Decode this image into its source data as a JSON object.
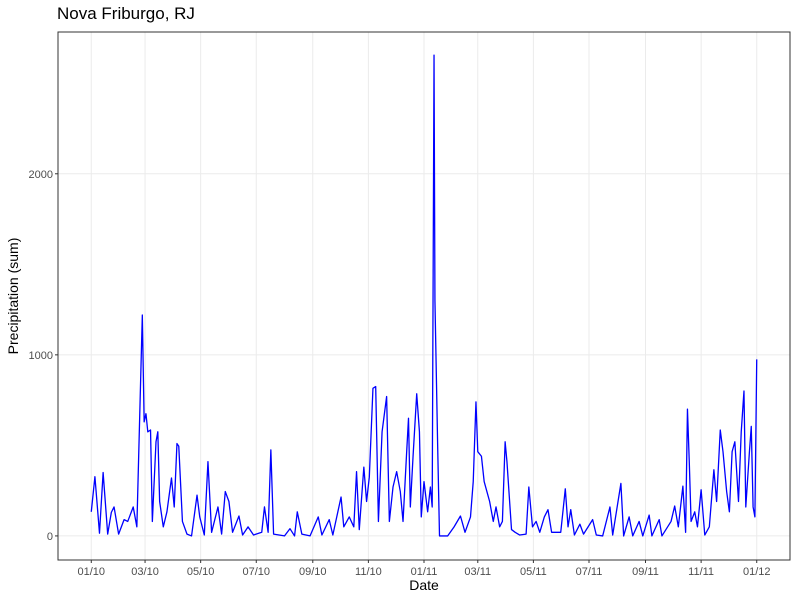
{
  "chart_data": {
    "type": "line",
    "title": "Nova Friburgo, RJ",
    "x_label": "Date",
    "y_label": "Precipitation (sum)",
    "x": [
      0,
      4,
      9,
      13,
      18,
      22,
      25,
      30,
      36,
      40,
      46,
      50,
      56,
      58,
      60,
      62,
      65,
      67,
      71,
      73,
      75,
      79,
      83,
      88,
      91,
      94,
      96,
      100,
      105,
      110,
      116,
      119,
      124,
      128,
      132,
      139,
      143,
      147,
      151,
      155,
      162,
      166,
      172,
      178,
      187,
      190,
      194,
      197,
      200,
      212,
      218,
      223,
      226,
      231,
      240,
      249,
      253,
      261,
      265,
      274,
      277,
      283,
      288,
      291,
      294,
      299,
      302,
      305,
      309,
      312,
      315,
      319,
      324,
      327,
      331,
      335,
      339,
      342,
      346,
      348,
      350,
      353,
      357,
      360,
      362,
      365,
      369,
      372,
      374,
      376,
      377,
      380,
      382,
      391,
      398,
      405,
      410,
      416,
      419,
      422,
      424,
      428,
      431,
      434,
      437,
      441,
      444,
      448,
      451,
      454,
      456,
      461,
      465,
      470,
      477,
      480,
      484,
      488,
      492,
      497,
      501,
      505,
      511,
      515,
      520,
      523,
      526,
      530,
      536,
      540,
      550,
      554,
      561,
      569,
      572,
      581,
      584,
      590,
      594,
      601,
      605,
      612,
      615,
      623,
      626,
      636,
      640,
      644,
      649,
      652,
      654,
      656,
      658,
      662,
      665,
      669,
      673,
      678,
      683,
      686,
      690,
      693,
      697,
      700,
      703,
      706,
      710,
      713,
      716,
      718,
      722,
      724,
      726,
      728,
      730
    ],
    "series": [
      {
        "name": "Precipitation",
        "color": "#0000ff",
        "values": [
          133,
          327,
          15,
          350,
          10,
          130,
          160,
          10,
          90,
          80,
          160,
          50,
          1220,
          630,
          675,
          575,
          585,
          80,
          520,
          575,
          190,
          50,
          133,
          320,
          160,
          510,
          495,
          80,
          10,
          0,
          225,
          105,
          5,
          410,
          20,
          160,
          10,
          245,
          190,
          20,
          110,
          5,
          50,
          5,
          20,
          160,
          20,
          475,
          10,
          0,
          40,
          0,
          133,
          10,
          0,
          105,
          5,
          90,
          5,
          215,
          50,
          105,
          50,
          355,
          35,
          380,
          190,
          325,
          815,
          825,
          80,
          575,
          770,
          80,
          270,
          355,
          245,
          80,
          465,
          650,
          160,
          440,
          785,
          575,
          105,
          300,
          133,
          270,
          160,
          2655,
          1300,
          495,
          0,
          0,
          50,
          110,
          20,
          105,
          300,
          740,
          465,
          440,
          300,
          245,
          190,
          80,
          160,
          50,
          80,
          520,
          410,
          35,
          20,
          5,
          10,
          270,
          50,
          80,
          20,
          105,
          145,
          20,
          20,
          20,
          260,
          50,
          145,
          5,
          65,
          10,
          90,
          5,
          0,
          160,
          5,
          290,
          0,
          105,
          0,
          80,
          0,
          115,
          0,
          90,
          0,
          80,
          165,
          50,
          275,
          20,
          700,
          410,
          80,
          133,
          50,
          255,
          5,
          50,
          365,
          190,
          585,
          465,
          245,
          133,
          465,
          520,
          190,
          575,
          800,
          160,
          465,
          605,
          160,
          105,
          975
        ]
      }
    ],
    "xlim": [
      -36.5,
      766.5
    ],
    "xticks": [
      {
        "value": 0,
        "label": "01/10"
      },
      {
        "value": 59,
        "label": "03/10"
      },
      {
        "value": 120,
        "label": "05/10"
      },
      {
        "value": 181,
        "label": "07/10"
      },
      {
        "value": 243,
        "label": "09/10"
      },
      {
        "value": 304,
        "label": "11/10"
      },
      {
        "value": 365,
        "label": "01/11"
      },
      {
        "value": 424,
        "label": "03/11"
      },
      {
        "value": 485,
        "label": "05/11"
      },
      {
        "value": 546,
        "label": "07/11"
      },
      {
        "value": 608,
        "label": "09/11"
      },
      {
        "value": 669,
        "label": "11/11"
      },
      {
        "value": 730,
        "label": "01/12"
      }
    ],
    "ylim": [
      -133,
      2783
    ],
    "yticks": [
      0,
      1000,
      2000
    ],
    "grid": true
  }
}
